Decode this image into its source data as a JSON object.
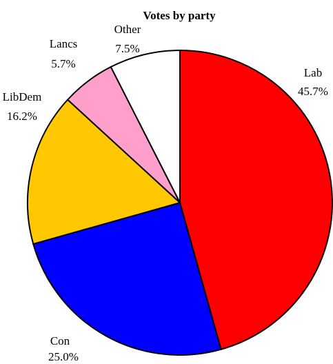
{
  "chart_data": {
    "type": "pie",
    "title": "Votes by party",
    "slices": [
      {
        "label": "Lab",
        "value": 45.7,
        "value_label": "45.7%",
        "color": "#ff0000"
      },
      {
        "label": "Con",
        "value": 25.0,
        "value_label": "25.0%",
        "color": "#0000ff"
      },
      {
        "label": "LibDem",
        "value": 16.2,
        "value_label": "16.2%",
        "color": "#ffc800"
      },
      {
        "label": "Lancs",
        "value": 5.7,
        "value_label": "5.7%",
        "color": "#ffa0cc"
      },
      {
        "label": "Other",
        "value": 7.5,
        "value_label": "7.5%",
        "color": "#ffffff"
      }
    ],
    "start": "12 o'clock",
    "direction": "clockwise",
    "outline_color": "#000000"
  }
}
